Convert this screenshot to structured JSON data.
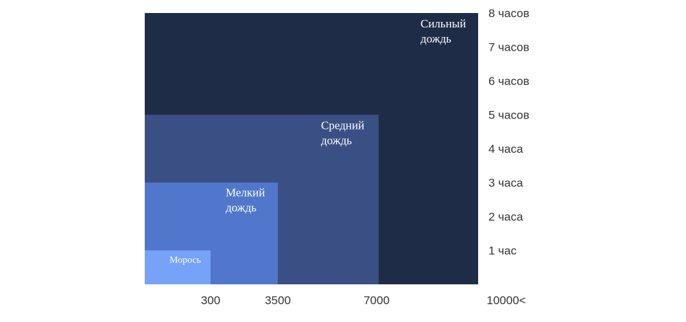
{
  "chart_data": {
    "type": "area",
    "title": "",
    "xlabel": "",
    "ylabel": "",
    "grid": false,
    "legend": "none",
    "x_ticks": [
      "300",
      "3500",
      "7000",
      "10000<"
    ],
    "y_ticks": [
      "1 час",
      "2 часа",
      "3 часа",
      "4 часа",
      "5 часов",
      "6 часов",
      "7 часов",
      "8 часов"
    ],
    "ylim": [
      0,
      8
    ],
    "series": [
      {
        "name": "Сильный дождь",
        "label_lines": [
          "Сильный",
          "дождь"
        ],
        "x_index": 3,
        "hours": 8,
        "color": "#1f2c48"
      },
      {
        "name": "Средний дождь",
        "label_lines": [
          "Средний",
          "дождь"
        ],
        "x_index": 2,
        "hours": 5,
        "color": "#3a5084"
      },
      {
        "name": "Мелкий дождь",
        "label_lines": [
          "Мелкий",
          "дождь"
        ],
        "x_index": 1,
        "hours": 3,
        "color": "#5077cb"
      },
      {
        "name": "Морось",
        "label_lines": [
          "Морось"
        ],
        "x_index": 0,
        "hours": 1,
        "color": "#76a2f8"
      }
    ]
  }
}
